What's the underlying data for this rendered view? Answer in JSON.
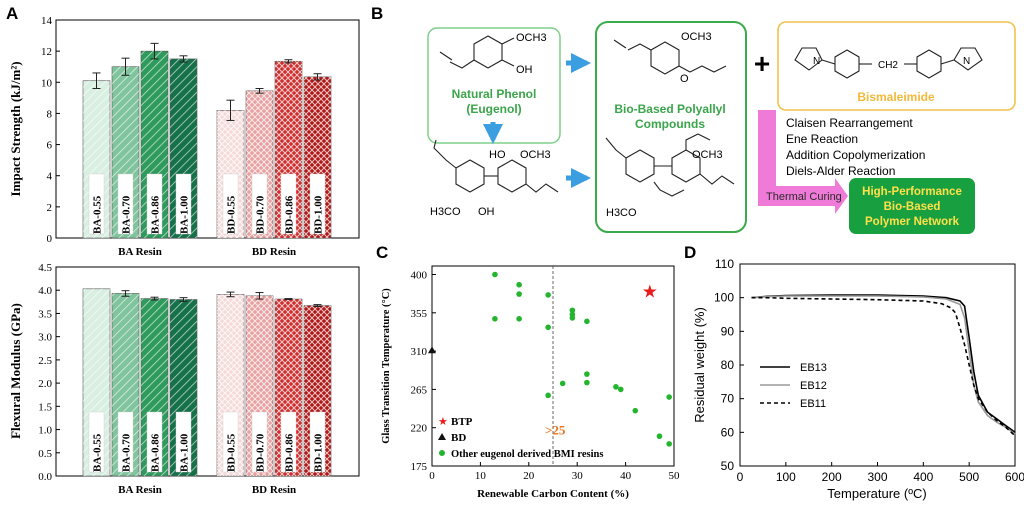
{
  "panel_letters": {
    "a": "A",
    "b": "B",
    "c": "C",
    "d": "D"
  },
  "colors": {
    "ba": [
      "#d9efe2",
      "#7fc49c",
      "#2e9a5c",
      "#15714a"
    ],
    "bd": [
      "#f6d9d9",
      "#e8a0a0",
      "#cf2e2e",
      "#b01818"
    ],
    "green_box": "#3aaa4a",
    "yellow_box": "#f2c14e",
    "curing_arrow": "#f07ad8",
    "product_fill": "#18a040",
    "star": "#e81c1c",
    "dot": "#24b52f"
  },
  "panel_b": {
    "phenol_label_1": "Natural Phenol",
    "phenol_label_2": "(Eugenol)",
    "polyallyl_label_1": "Bio-Based Polyallyl",
    "polyallyl_label_2": "Compounds",
    "bmi_label": "Bismaleimide",
    "plus": "+",
    "och3": "OCH3",
    "oh": "OH",
    "ho": "HO",
    "h3co": "H3CO",
    "ch2": "CH2",
    "n": "N",
    "o": "O",
    "reactions": [
      "Claisen Rearrangement",
      "Ene Reaction",
      "Addition Copolymerization",
      "Diels-Alder  Reaction"
    ],
    "curing_label": "Thermal Curing",
    "product_lines": [
      "High-Performance",
      "Bio-Based",
      "Polymer Network"
    ]
  },
  "chart_data": [
    {
      "type": "bar",
      "title": "",
      "ylabel": "Impact Strength (kJ/m²)",
      "ylim": [
        0,
        14
      ],
      "yticks": [
        "0",
        "2",
        "4",
        "6",
        "8",
        "10",
        "12",
        "14"
      ],
      "groups": [
        {
          "name": "BA Resin",
          "labels": [
            "BA-0.55",
            "BA-0.70",
            "BA-0.86",
            "BA-1.00"
          ],
          "values": [
            10.1,
            11.0,
            12.0,
            11.5
          ],
          "errors": [
            0.5,
            0.55,
            0.5,
            0.2
          ]
        },
        {
          "name": "BD Resin",
          "labels": [
            "BD-0.55",
            "BD-0.70",
            "BD-0.86",
            "BD-1.00"
          ],
          "values": [
            8.2,
            9.45,
            11.35,
            10.35
          ],
          "errors": [
            0.65,
            0.15,
            0.1,
            0.2
          ]
        }
      ]
    },
    {
      "type": "bar",
      "title": "",
      "ylabel": "Flexural Modulus (GPa)",
      "ylim": [
        0,
        4.5
      ],
      "yticks": [
        "0.0",
        "0.5",
        "1.0",
        "1.5",
        "2.0",
        "2.5",
        "3.0",
        "3.5",
        "4.0",
        "4.5"
      ],
      "groups": [
        {
          "name": "BA Resin",
          "labels": [
            "BA-0.55",
            "BA-0.70",
            "BA-0.86",
            "BA-1.00"
          ],
          "values": [
            4.03,
            3.93,
            3.82,
            3.8
          ],
          "errors": [
            0.0,
            0.06,
            0.03,
            0.04
          ]
        },
        {
          "name": "BD Resin",
          "labels": [
            "BD-0.55",
            "BD-0.70",
            "BD-0.86",
            "BD-1.00"
          ],
          "values": [
            3.91,
            3.88,
            3.81,
            3.67
          ],
          "errors": [
            0.05,
            0.07,
            0.01,
            0.02
          ]
        }
      ]
    },
    {
      "type": "scatter",
      "xlabel": "Renewable Carbon Content (%)",
      "ylabel": "Glass Transition Temperature (°C)",
      "xlim": [
        0,
        50
      ],
      "ylim": [
        175,
        410
      ],
      "xticks": [
        0,
        10,
        20,
        30,
        40,
        50
      ],
      "yticks": [
        175,
        220,
        265,
        310,
        355,
        400
      ],
      "threshold": {
        "x": 25,
        "label": ">25"
      },
      "legend": [
        "BTP",
        "BD",
        "Other eugenol derived BMI resins"
      ],
      "series": [
        {
          "name": "BTP",
          "points": [
            [
              45,
              380
            ]
          ]
        },
        {
          "name": "BD",
          "points": [
            [
              0,
              311
            ]
          ]
        },
        {
          "name": "Other eugenol derived BMI resins",
          "points": [
            [
              13,
              400
            ],
            [
              13,
              348
            ],
            [
              18,
              388
            ],
            [
              18,
              377
            ],
            [
              18,
              348
            ],
            [
              24,
              376
            ],
            [
              24,
              338
            ],
            [
              24,
              258
            ],
            [
              27,
              272
            ],
            [
              29,
              358
            ],
            [
              29,
              353
            ],
            [
              29,
              349
            ],
            [
              32,
              345
            ],
            [
              32,
              283
            ],
            [
              32,
              273
            ],
            [
              38,
              268
            ],
            [
              39,
              265
            ],
            [
              42,
              240
            ],
            [
              47,
              210
            ],
            [
              49,
              256
            ],
            [
              49,
              201
            ]
          ]
        }
      ]
    },
    {
      "type": "line",
      "xlabel": "Temperature (ºC)",
      "ylabel": "Residual weight (%)",
      "xlim": [
        0,
        600
      ],
      "ylim": [
        50,
        110
      ],
      "xticks": [
        0,
        100,
        200,
        300,
        400,
        500,
        600
      ],
      "yticks": [
        50,
        60,
        70,
        80,
        90,
        100,
        110
      ],
      "series": [
        {
          "name": "EB13",
          "x": [
            25,
            60,
            100,
            200,
            300,
            400,
            450,
            480,
            490,
            500,
            510,
            520,
            540,
            560,
            580,
            600
          ],
          "y": [
            100,
            100.4,
            100.6,
            100.8,
            100.8,
            100.5,
            100,
            99,
            97.5,
            88,
            78,
            71,
            66,
            64,
            62,
            60
          ]
        },
        {
          "name": "EB12",
          "x": [
            25,
            60,
            100,
            200,
            300,
            400,
            450,
            480,
            490,
            500,
            510,
            520,
            540,
            560,
            580,
            600
          ],
          "y": [
            100,
            100.3,
            100.5,
            100.5,
            100.5,
            100.2,
            99.6,
            98,
            94,
            84,
            74,
            69,
            65,
            63,
            61.5,
            59.5
          ]
        },
        {
          "name": "EB11",
          "x": [
            25,
            60,
            100,
            200,
            300,
            400,
            440,
            460,
            470,
            480,
            490,
            500,
            510,
            520,
            540,
            560,
            580,
            600
          ],
          "y": [
            100,
            100,
            99.8,
            99.6,
            99.4,
            99,
            98.2,
            97,
            95.5,
            91,
            86,
            80,
            74,
            70,
            66,
            63.5,
            61.5,
            59
          ]
        }
      ]
    }
  ]
}
